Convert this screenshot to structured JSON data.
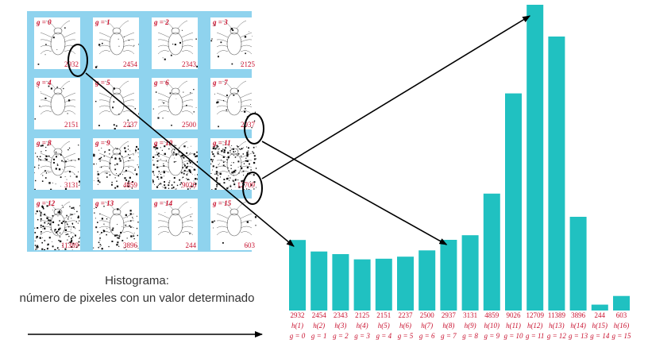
{
  "caption": {
    "title": "Histograma:",
    "description": "número de pixeles con un valor determinado"
  },
  "colors": {
    "bar": "#20c1c1",
    "label": "#c8102e",
    "panel": "#8fd3ee"
  },
  "tiles": [
    {
      "g": "g = 0",
      "count": "2932"
    },
    {
      "g": "g = 1",
      "count": "2454"
    },
    {
      "g": "g = 2",
      "count": "2343"
    },
    {
      "g": "g = 3",
      "count": "2125"
    },
    {
      "g": "g = 4",
      "count": "2151"
    },
    {
      "g": "g = 5",
      "count": "2237"
    },
    {
      "g": "g = 6",
      "count": "2500"
    },
    {
      "g": "g = 7",
      "count": "2937"
    },
    {
      "g": "g = 8",
      "count": "3131"
    },
    {
      "g": "g = 9",
      "count": "4859"
    },
    {
      "g": "g = 10",
      "count": "9026"
    },
    {
      "g": "g = 11",
      "count": "12709"
    },
    {
      "g": "g = 12",
      "count": "11389"
    },
    {
      "g": "g = 13",
      "count": "3896"
    },
    {
      "g": "g = 14",
      "count": "244"
    },
    {
      "g": "g = 15",
      "count": "603"
    }
  ],
  "chart_data": {
    "type": "bar",
    "categories": [
      "h(1)",
      "h(2)",
      "h(3)",
      "h(4)",
      "h(5)",
      "h(6)",
      "h(7)",
      "h(8)",
      "h(9)",
      "h(10)",
      "h(11)",
      "h(12)",
      "h(13)",
      "h(14)",
      "h(15)",
      "h(16)"
    ],
    "values": [
      2932,
      2454,
      2343,
      2125,
      2151,
      2237,
      2500,
      2937,
      3131,
      4859,
      9026,
      12709,
      11389,
      3896,
      244,
      603
    ],
    "value_labels": [
      "2932",
      "2454",
      "2343",
      "2125",
      "2151",
      "2237",
      "2500",
      "2937",
      "3131",
      "4859",
      "9026",
      "12709",
      "11389",
      "3896",
      "244",
      "603"
    ],
    "g_labels": [
      "g = 0",
      "g = 1",
      "g = 2",
      "g = 3",
      "g = 4",
      "g = 5",
      "g = 6",
      "g = 7",
      "g = 8",
      "g = 9",
      "g = 10",
      "g = 11",
      "g = 12",
      "g = 13",
      "g = 14",
      "g = 15"
    ],
    "title": "",
    "xlabel": "",
    "ylabel": "",
    "ylim": [
      0,
      12709
    ],
    "grid": false,
    "legend": "none"
  }
}
